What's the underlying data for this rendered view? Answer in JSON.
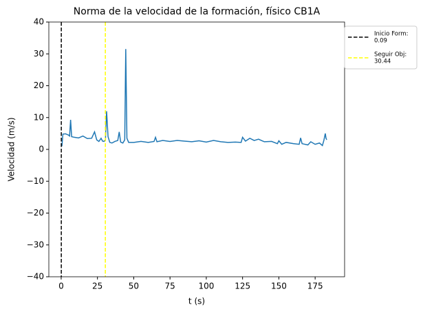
{
  "chart_data": {
    "type": "line",
    "title": "Norma de la velocidad de la formación, físico CB1A",
    "xlabel": "t (s)",
    "ylabel": "Velocidad (m/s)",
    "x": [
      0.5,
      1.2,
      3,
      5,
      5.8,
      6.5,
      7.2,
      9,
      12,
      15,
      18,
      21,
      23,
      24.5,
      26,
      27.5,
      28.5,
      29.5,
      30.5,
      31.3,
      32.3,
      33.5,
      35,
      37,
      39,
      40,
      41,
      42.5,
      43.8,
      44.5,
      45.3,
      46.5,
      50,
      55,
      60,
      64,
      65,
      66,
      70,
      75,
      80,
      85,
      90,
      95,
      100,
      105,
      110,
      115,
      120,
      124,
      125,
      127,
      130,
      133,
      136,
      140,
      145,
      149,
      150,
      152,
      155,
      160,
      164,
      165,
      166,
      170,
      172,
      175,
      178,
      180,
      181,
      182,
      182.5,
      183
    ],
    "values": [
      1,
      4.8,
      4.9,
      4.5,
      4.2,
      9.3,
      4,
      3.8,
      3.6,
      4.2,
      3.4,
      3.5,
      5.5,
      3,
      2.5,
      3.5,
      2.6,
      2.5,
      3,
      12,
      4,
      2.2,
      2,
      2.5,
      2.8,
      5.5,
      2.3,
      2,
      3,
      31.5,
      3.5,
      2.2,
      2.2,
      2.5,
      2.2,
      2.5,
      3.8,
      2.4,
      2.8,
      2.5,
      2.8,
      2.6,
      2.4,
      2.7,
      2.3,
      2.8,
      2.4,
      2.2,
      2.3,
      2.2,
      3.8,
      2.6,
      3.5,
      2.8,
      3.2,
      2.4,
      2.5,
      1.8,
      2.7,
      1.6,
      2.2,
      1.8,
      1.6,
      3.6,
      1.8,
      1.4,
      2.4,
      1.6,
      2,
      1.2,
      2.8,
      5,
      3.5,
      3
    ],
    "color": "#1f77b4",
    "vlines": [
      {
        "name": "Inicio Form:",
        "x": 0.09,
        "color": "#000000"
      },
      {
        "name": "Seguir Obj:",
        "x": 30.44,
        "color": "#ffff00"
      }
    ],
    "xlim": [
      -8.5,
      195.3
    ],
    "ylim": [
      -40,
      40
    ],
    "xticks": [
      0,
      25,
      50,
      75,
      100,
      125,
      150,
      175
    ],
    "yticks": [
      {
        "value": -40,
        "label": "−40"
      },
      {
        "value": -30,
        "label": "−30"
      },
      {
        "value": -20,
        "label": "−20"
      },
      {
        "value": -10,
        "label": "−10"
      },
      0,
      10,
      20,
      30,
      40
    ],
    "legend": "outside-upper-right"
  }
}
